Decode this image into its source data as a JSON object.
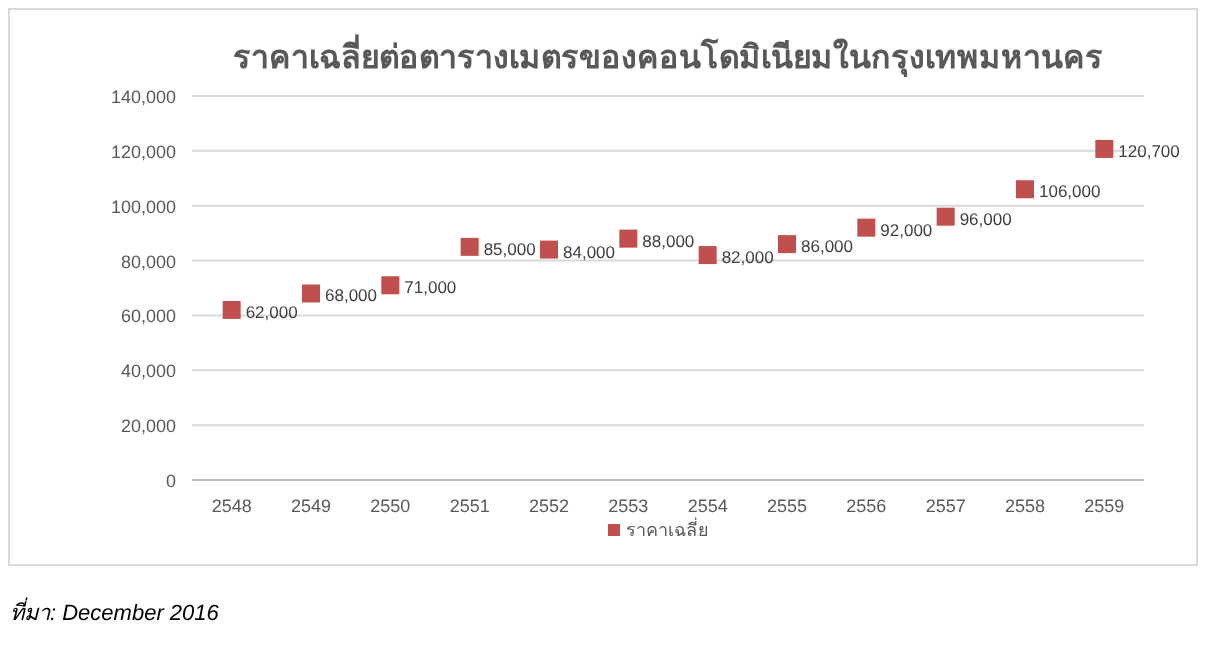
{
  "chart_data": {
    "type": "scatter",
    "title": "ราคาเฉลี่ยต่อตารางเมตรของคอนโดมิเนียมในกรุงเทพมหานคร",
    "categories": [
      "2548",
      "2549",
      "2550",
      "2551",
      "2552",
      "2553",
      "2554",
      "2555",
      "2556",
      "2557",
      "2558",
      "2559"
    ],
    "series": [
      {
        "name": "ราคาเฉลี่ย",
        "color": "#c0504d",
        "values": [
          62000,
          68000,
          71000,
          85000,
          84000,
          88000,
          82000,
          86000,
          92000,
          96000,
          106000,
          120700
        ],
        "value_labels": [
          "62,000",
          "68,000",
          "71,000",
          "85,000",
          "84,000",
          "88,000",
          "82,000",
          "86,000",
          "92,000",
          "96,000",
          "106,000",
          "120,700"
        ]
      }
    ],
    "ylim": [
      0,
      140000
    ],
    "yticks": [
      0,
      {
        "value": 20000,
        "label": "20,000"
      },
      {
        "value": 40000,
        "label": "40,000"
      },
      {
        "value": 60000,
        "label": "60,000"
      },
      {
        "value": 80000,
        "label": "80,000"
      },
      {
        "value": 100000,
        "label": "100,000"
      },
      {
        "value": 120000,
        "label": "120,000"
      },
      {
        "value": 140000,
        "label": "140,000"
      }
    ],
    "grid": "y",
    "legend": "bottom",
    "marker": "square",
    "annotations": [
      "ที่มา: December 2016"
    ]
  }
}
